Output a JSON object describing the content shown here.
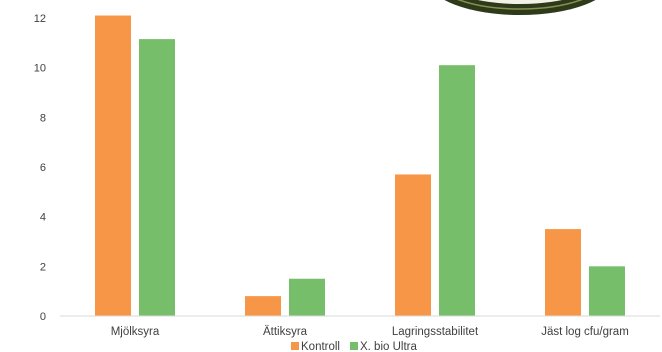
{
  "chart_data": {
    "type": "bar",
    "categories": [
      "Mjölksyra",
      "Ättiksyra",
      "Lagringsstabilitet",
      "Jäst log cfu/gram"
    ],
    "series": [
      {
        "name": "Kontroll",
        "color": "#F79646",
        "values": [
          12.1,
          0.8,
          5.7,
          3.5
        ]
      },
      {
        "name": "X. bio Ultra",
        "color": "#77BE6A",
        "values": [
          11.15,
          1.5,
          10.1,
          2.0
        ]
      }
    ],
    "yticks": [
      0,
      2,
      4,
      6,
      8,
      10,
      12
    ],
    "ylim": [
      0,
      12
    ],
    "grid": false,
    "legend_position": "bottom",
    "logo_colors": {
      "ring": "#2E3B1A",
      "inner": "#F4F1E6"
    }
  }
}
